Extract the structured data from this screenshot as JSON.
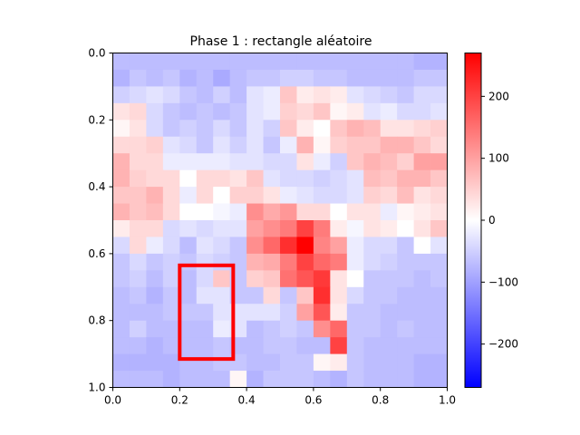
{
  "chart_data": {
    "type": "heatmap",
    "title": "Phase 1 : rectangle aléatoire",
    "xlabel": "",
    "ylabel": "",
    "xlim": [
      0.0,
      1.0
    ],
    "ylim": [
      1.0,
      0.0
    ],
    "x_ticks": [
      "0.0",
      "0.2",
      "0.4",
      "0.6",
      "0.8",
      "1.0"
    ],
    "y_ticks": [
      "0.0",
      "0.2",
      "0.4",
      "0.6",
      "0.8",
      "1.0"
    ],
    "colormap": "bwr",
    "colorbar_range": [
      -270,
      270
    ],
    "colorbar_ticks": [
      "−200",
      "−100",
      "0",
      "100",
      "200"
    ],
    "colorbar_tick_values": [
      -200,
      -100,
      0,
      100,
      200
    ],
    "grid_size": [
      20,
      20
    ],
    "values": [
      [
        -70,
        -70,
        -70,
        -70,
        -70,
        -70,
        -70,
        -70,
        -70,
        -70,
        -70,
        -70,
        -70,
        -70,
        -70,
        -70,
        -70,
        -70,
        -80,
        -80
      ],
      [
        -80,
        -60,
        -70,
        -60,
        -80,
        -70,
        -90,
        -70,
        -60,
        -60,
        -50,
        -50,
        -60,
        -60,
        -70,
        -70,
        -70,
        -70,
        -60,
        -60
      ],
      [
        -50,
        -40,
        -30,
        -40,
        -60,
        -70,
        -50,
        -70,
        -30,
        -20,
        60,
        20,
        30,
        20,
        -30,
        -40,
        -50,
        -60,
        -40,
        -40
      ],
      [
        30,
        40,
        -40,
        -60,
        -70,
        -60,
        -70,
        -60,
        -30,
        -20,
        50,
        40,
        60,
        10,
        20,
        -30,
        -20,
        -40,
        -40,
        -30
      ],
      [
        10,
        30,
        -40,
        -60,
        -50,
        -60,
        -40,
        -60,
        -30,
        -50,
        60,
        20,
        0,
        60,
        80,
        70,
        30,
        30,
        40,
        50
      ],
      [
        40,
        40,
        50,
        -30,
        -40,
        -60,
        -30,
        -50,
        -30,
        -60,
        -20,
        80,
        10,
        50,
        60,
        60,
        80,
        80,
        60,
        40
      ],
      [
        80,
        40,
        40,
        -20,
        -20,
        -20,
        -20,
        -30,
        -30,
        -40,
        -40,
        30,
        -20,
        -50,
        60,
        80,
        70,
        50,
        100,
        100
      ],
      [
        80,
        50,
        40,
        40,
        0,
        40,
        40,
        30,
        60,
        -30,
        -40,
        -40,
        -50,
        -40,
        -30,
        70,
        60,
        80,
        80,
        60
      ],
      [
        60,
        60,
        80,
        40,
        -20,
        40,
        0,
        50,
        50,
        30,
        -20,
        -30,
        -40,
        -40,
        -30,
        50,
        40,
        70,
        30,
        40
      ],
      [
        80,
        60,
        70,
        40,
        0,
        0,
        -10,
        -20,
        120,
        90,
        110,
        40,
        40,
        0,
        30,
        30,
        -20,
        10,
        20,
        30
      ],
      [
        20,
        40,
        40,
        -40,
        -30,
        -40,
        -30,
        -30,
        100,
        120,
        140,
        200,
        140,
        20,
        -10,
        30,
        20,
        0,
        30,
        60
      ],
      [
        -40,
        40,
        -20,
        -40,
        -70,
        -30,
        -40,
        -60,
        120,
        160,
        220,
        270,
        130,
        100,
        -20,
        -40,
        -40,
        -60,
        0,
        -30
      ],
      [
        -60,
        -40,
        -60,
        -50,
        -60,
        -40,
        -50,
        -60,
        80,
        90,
        140,
        200,
        160,
        140,
        -20,
        -40,
        -50,
        -60,
        -60,
        -60
      ],
      [
        -60,
        -50,
        -70,
        -50,
        -70,
        -40,
        60,
        -60,
        50,
        60,
        150,
        180,
        210,
        30,
        0,
        -60,
        -60,
        -60,
        -70,
        -60
      ],
      [
        -70,
        -60,
        -80,
        -60,
        -70,
        -30,
        -30,
        -60,
        -60,
        40,
        -60,
        60,
        220,
        30,
        -40,
        -60,
        -60,
        -70,
        -70,
        -70
      ],
      [
        -70,
        -70,
        -70,
        -60,
        -60,
        -60,
        -30,
        -30,
        -30,
        -30,
        -50,
        100,
        180,
        20,
        -60,
        -60,
        -70,
        -70,
        -70,
        -70
      ],
      [
        -70,
        -50,
        -70,
        -70,
        -70,
        -70,
        -20,
        -30,
        -70,
        -60,
        -50,
        -60,
        120,
        160,
        -60,
        -60,
        -70,
        -60,
        -70,
        -70
      ],
      [
        -70,
        -70,
        -80,
        -70,
        -70,
        -70,
        -60,
        -70,
        -70,
        -60,
        -60,
        -70,
        -70,
        200,
        -60,
        -70,
        -70,
        -70,
        -70,
        -70
      ],
      [
        -80,
        -80,
        -80,
        -80,
        -70,
        -70,
        -60,
        -60,
        -70,
        -70,
        -60,
        -60,
        10,
        20,
        -60,
        -70,
        -70,
        -70,
        -80,
        -80
      ],
      [
        -70,
        -70,
        -70,
        -80,
        -70,
        -70,
        -70,
        10,
        -80,
        -60,
        -60,
        -60,
        -70,
        -80,
        -60,
        -70,
        -70,
        -70,
        -80,
        -80
      ]
    ],
    "annotation_rectangle": {
      "x0": 0.2,
      "x1": 0.36,
      "y0": 0.635,
      "y1": 0.915,
      "color": "#ff0000"
    }
  }
}
